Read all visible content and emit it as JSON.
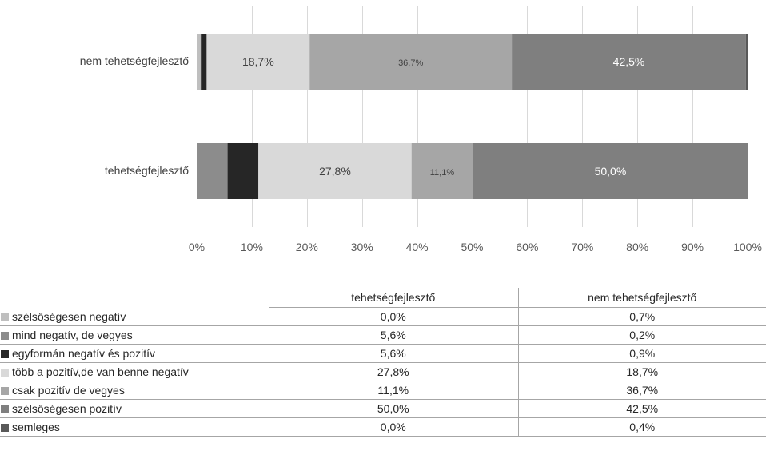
{
  "chart_data": {
    "type": "bar",
    "orientation": "horizontal",
    "stacked": true,
    "percent_stacked": true,
    "categories": [
      "nem tehetségfejlesztő",
      "tehetségfejlesztő"
    ],
    "series": [
      {
        "name": "szélsőségesen negatív",
        "color": "#bfbfbf",
        "values": [
          0.7,
          0.0
        ]
      },
      {
        "name": "mind negatív, de vegyes",
        "color": "#8c8c8c",
        "values": [
          0.2,
          5.6
        ]
      },
      {
        "name": "egyformán negatív és pozitív",
        "color": "#262626",
        "values": [
          0.9,
          5.6
        ]
      },
      {
        "name": "több a pozitív,de van benne negatív",
        "color": "#d9d9d9",
        "values": [
          18.7,
          27.8
        ]
      },
      {
        "name": "csak pozitív de vegyes",
        "color": "#a6a6a6",
        "values": [
          36.7,
          11.1
        ]
      },
      {
        "name": "szélsőségesen pozitív",
        "color": "#7f7f7f",
        "values": [
          42.5,
          50.0
        ]
      },
      {
        "name": "semleges",
        "color": "#595959",
        "values": [
          0.4,
          0.0
        ]
      }
    ],
    "data_labels": [
      {
        "category": "nem tehetségfejlesztő",
        "series": "több a pozitív,de van benne negatív",
        "text": "18,7%"
      },
      {
        "category": "nem tehetségfejlesztő",
        "series": "csak pozitív de vegyes",
        "text": "36,7%"
      },
      {
        "category": "nem tehetségfejlesztő",
        "series": "szélsőségesen pozitív",
        "text": "42,5%"
      },
      {
        "category": "tehetségfejlesztő",
        "series": "több a pozitív,de van benne negatív",
        "text": "27,8%"
      },
      {
        "category": "tehetségfejlesztő",
        "series": "csak pozitív de vegyes",
        "text": "11,1%"
      },
      {
        "category": "tehetségfejlesztő",
        "series": "szélsőségesen pozitív",
        "text": "50,0%"
      }
    ],
    "xlim": [
      0,
      100
    ],
    "x_ticks": [
      "0%",
      "10%",
      "20%",
      "30%",
      "40%",
      "50%",
      "60%",
      "70%",
      "80%",
      "90%",
      "100%"
    ],
    "grid": true,
    "legend": "data-table-below",
    "title": "",
    "xlabel": "",
    "ylabel": ""
  },
  "table": {
    "headers": [
      "tehetségfejlesztő",
      "nem tehetségfejlesztő"
    ],
    "rows": [
      {
        "label": "szélsőségesen negatív",
        "color": "#bfbfbf",
        "values": [
          "0,0%",
          "0,7%"
        ]
      },
      {
        "label": "mind negatív, de vegyes",
        "color": "#8c8c8c",
        "values": [
          "5,6%",
          "0,2%"
        ]
      },
      {
        "label": "egyformán negatív és pozitív",
        "color": "#262626",
        "values": [
          "5,6%",
          "0,9%"
        ]
      },
      {
        "label": "több a pozitív,de van benne negatív",
        "color": "#d9d9d9",
        "values": [
          "27,8%",
          "18,7%"
        ]
      },
      {
        "label": "csak pozitív de vegyes",
        "color": "#a6a6a6",
        "values": [
          "11,1%",
          "36,7%"
        ]
      },
      {
        "label": "szélsőségesen pozitív",
        "color": "#7f7f7f",
        "values": [
          "50,0%",
          "42,5%"
        ]
      },
      {
        "label": "semleges",
        "color": "#595959",
        "values": [
          "0,0%",
          "0,4%"
        ]
      }
    ]
  }
}
